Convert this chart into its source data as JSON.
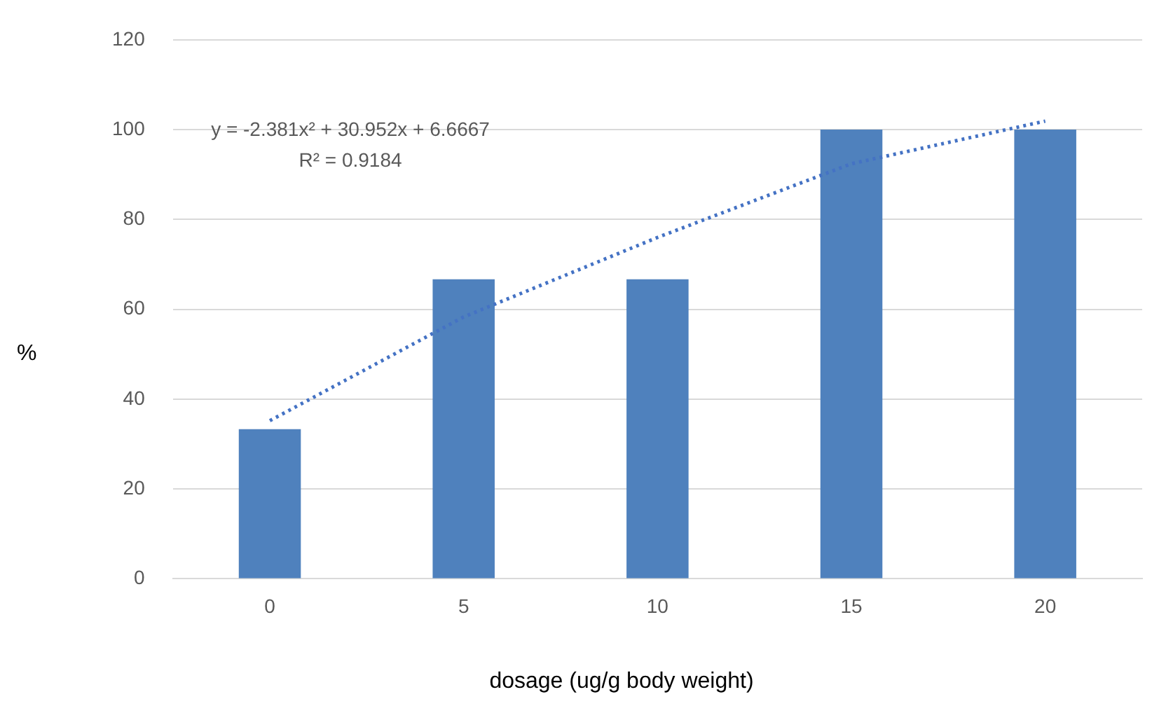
{
  "chart_data": {
    "type": "bar",
    "xlabel": "dosage (ug/g body weight)",
    "ylabel": "%",
    "categories": [
      "0",
      "5",
      "10",
      "15",
      "20"
    ],
    "series": [
      {
        "color": "#4f81bd",
        "values": [
          33.3,
          66.7,
          66.7,
          100,
          100
        ]
      },
      {
        "type": "line",
        "color": "#4472c4",
        "line_style": "dotted",
        "marker": "none",
        "x": [
          "0",
          "5",
          "10",
          "15",
          "20"
        ],
        "values": [
          35.2,
          58.3,
          76.0,
          92.4,
          101.9
        ]
      }
    ],
    "ylim": [
      0,
      120
    ],
    "yticks": [
      0,
      20,
      40,
      60,
      80,
      100,
      120
    ],
    "grid": "y",
    "legend": false,
    "annotations": [
      "y = -2.381x² + 30.952x + 6.6667",
      "R² = 0.9184"
    ]
  }
}
